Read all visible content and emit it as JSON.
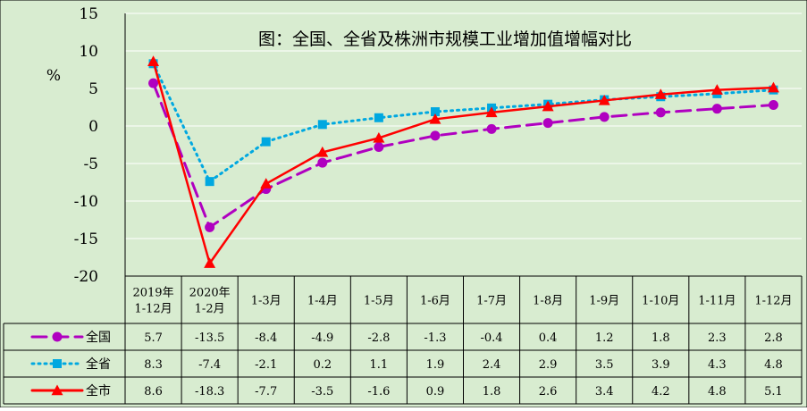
{
  "chart_data": {
    "type": "line",
    "title": "图：全国、全省及株洲市规模工业增加值增幅对比",
    "ylabel": "%",
    "ylim": [
      -20,
      15
    ],
    "yticks": [
      15,
      10,
      5,
      0,
      -5,
      -10,
      -15,
      -20
    ],
    "ytick_labels": [
      "15",
      "10",
      "5",
      "0",
      "-5",
      "-10",
      "-15",
      "-20"
    ],
    "categories": [
      [
        "2019年",
        "1-12月"
      ],
      [
        "2020年",
        "1-2月"
      ],
      [
        "1-3月"
      ],
      [
        "1-4月"
      ],
      [
        "1-5月"
      ],
      [
        "1-6月"
      ],
      [
        "1-7月"
      ],
      [
        "1-8月"
      ],
      [
        "1-9月"
      ],
      [
        "1-10月"
      ],
      [
        "1-11月"
      ],
      [
        "1-12月"
      ]
    ],
    "grid": true,
    "legend": "data-table",
    "series": [
      {
        "name": "全国",
        "values": [
          5.7,
          -13.5,
          -8.4,
          -4.9,
          -2.8,
          -1.3,
          -0.4,
          0.4,
          1.2,
          1.8,
          2.3,
          2.8
        ],
        "labels": [
          "5.7",
          "-13.5",
          "-8.4",
          "-4.9",
          "-2.8",
          "-1.3",
          "-0.4",
          "0.4",
          "1.2",
          "1.8",
          "2.3",
          "2.8"
        ],
        "color": "#b000c0",
        "line_style": "dashed",
        "marker": "circle"
      },
      {
        "name": "全省",
        "values": [
          8.3,
          -7.4,
          -2.1,
          0.2,
          1.1,
          1.9,
          2.4,
          2.9,
          3.5,
          3.9,
          4.3,
          4.8
        ],
        "labels": [
          "8.3",
          "-7.4",
          "-2.1",
          "0.2",
          "1.1",
          "1.9",
          "2.4",
          "2.9",
          "3.5",
          "3.9",
          "4.3",
          "4.8"
        ],
        "color": "#00a8e0",
        "line_style": "dotted",
        "marker": "square"
      },
      {
        "name": "全市",
        "values": [
          8.6,
          -18.3,
          -7.7,
          -3.5,
          -1.6,
          0.9,
          1.8,
          2.6,
          3.4,
          4.2,
          4.8,
          5.1
        ],
        "labels": [
          "8.6",
          "-18.3",
          "-7.7",
          "-3.5",
          "-1.6",
          "0.9",
          "1.8",
          "2.6",
          "3.4",
          "4.2",
          "4.8",
          "5.1"
        ],
        "color": "#ff0000",
        "line_style": "solid",
        "marker": "triangle"
      }
    ],
    "colors": {
      "plot_background": "#d8ecd0",
      "gridline": "#ffffff"
    }
  }
}
